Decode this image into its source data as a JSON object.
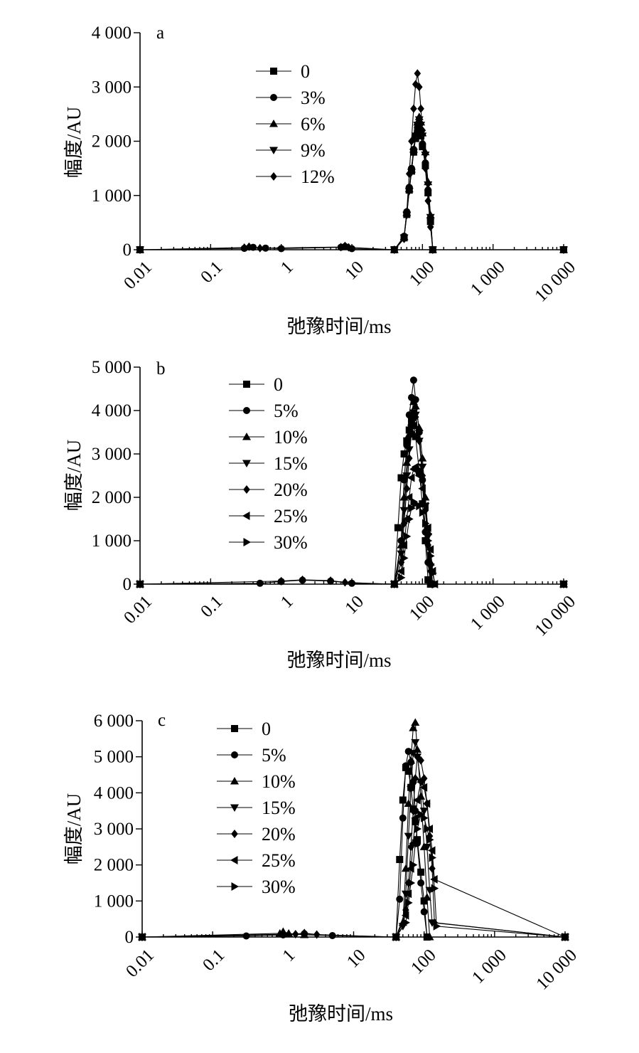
{
  "chart_data": [
    {
      "type": "line",
      "panel_label": "a",
      "xscale": "log",
      "xlim": [
        0.01,
        10000
      ],
      "ylim": [
        0,
        4000
      ],
      "xticks": [
        "0.01",
        "0.1",
        "1",
        "10",
        "100",
        "1 000",
        "10 000"
      ],
      "yticks": [
        "0",
        "1 000",
        "2 000",
        "3 000",
        "4 000"
      ],
      "xlabel": "弛豫时间/ms",
      "ylabel": "幅度/AU",
      "legend_position": "upper-left",
      "series": [
        {
          "name": "0",
          "marker": "square",
          "x": [
            0.01,
            40,
            55,
            60,
            65,
            70,
            75,
            80,
            85,
            90,
            95,
            100,
            110,
            120,
            130,
            140,
            10000
          ],
          "y": [
            0,
            0,
            220,
            650,
            1100,
            1450,
            1800,
            2050,
            2150,
            2200,
            2100,
            1900,
            1550,
            1050,
            520,
            0,
            0
          ]
        },
        {
          "name": "3%",
          "marker": "circle",
          "x": [
            0.01,
            0.3,
            0.4,
            0.6,
            1,
            7,
            8,
            10,
            40,
            55,
            60,
            65,
            70,
            75,
            80,
            85,
            90,
            95,
            100,
            110,
            120,
            130,
            140,
            10000
          ],
          "y": [
            0,
            25,
            45,
            30,
            20,
            45,
            60,
            20,
            0,
            250,
            700,
            1150,
            1500,
            1850,
            2100,
            2250,
            2300,
            2200,
            1950,
            1600,
            1100,
            560,
            0,
            0
          ]
        },
        {
          "name": "6%",
          "marker": "triangle-up",
          "x": [
            0.01,
            40,
            55,
            60,
            65,
            70,
            75,
            80,
            85,
            90,
            95,
            100,
            110,
            120,
            130,
            140,
            10000
          ],
          "y": [
            0,
            0,
            240,
            680,
            1120,
            1480,
            1850,
            2150,
            2350,
            2450,
            2350,
            2150,
            1800,
            1250,
            640,
            0,
            0
          ]
        },
        {
          "name": "9%",
          "marker": "triangle-down",
          "x": [
            0.01,
            40,
            55,
            60,
            65,
            70,
            75,
            80,
            85,
            90,
            95,
            100,
            110,
            120,
            130,
            140,
            10000
          ],
          "y": [
            0,
            0,
            220,
            640,
            1080,
            1430,
            1800,
            2100,
            2300,
            2400,
            2300,
            2100,
            1750,
            1200,
            600,
            0,
            0
          ]
        },
        {
          "name": "12%",
          "marker": "diamond",
          "x": [
            0.01,
            0.3,
            0.35,
            0.5,
            7,
            8,
            9,
            40,
            55,
            60,
            65,
            70,
            75,
            80,
            85,
            90,
            95,
            100,
            110,
            120,
            130,
            140,
            10000
          ],
          "y": [
            0,
            40,
            55,
            30,
            50,
            70,
            45,
            0,
            200,
            700,
            1400,
            2000,
            2600,
            3050,
            3250,
            3000,
            2600,
            2200,
            1500,
            900,
            420,
            0,
            0
          ]
        }
      ]
    },
    {
      "type": "line",
      "panel_label": "b",
      "xscale": "log",
      "xlim": [
        0.01,
        10000
      ],
      "ylim": [
        0,
        5000
      ],
      "xticks": [
        "0.01",
        "0.1",
        "1",
        "10",
        "100",
        "1 000",
        "10 000"
      ],
      "yticks": [
        "0",
        "1 000",
        "2 000",
        "3 000",
        "4 000",
        "5 000"
      ],
      "xlabel": "弛豫时间/ms",
      "ylabel": "幅度/AU",
      "legend_position": "upper-left",
      "series": [
        {
          "name": "0",
          "marker": "square",
          "x": [
            0.01,
            40,
            45,
            50,
            55,
            60,
            65,
            70,
            75,
            80,
            90,
            100,
            110,
            120,
            130,
            10000
          ],
          "y": [
            0,
            0,
            1300,
            2450,
            3000,
            3300,
            3550,
            3750,
            3650,
            3400,
            2600,
            1850,
            1000,
            100,
            0,
            0
          ]
        },
        {
          "name": "5%",
          "marker": "circle",
          "x": [
            0.01,
            0.5,
            1,
            2,
            5,
            10,
            40,
            50,
            55,
            60,
            65,
            70,
            75,
            80,
            90,
            100,
            110,
            120,
            130,
            10000
          ],
          "y": [
            0,
            20,
            60,
            90,
            70,
            20,
            0,
            1000,
            2400,
            3200,
            3900,
            4300,
            4700,
            4250,
            3500,
            2400,
            1200,
            500,
            0,
            0
          ]
        },
        {
          "name": "10%",
          "marker": "triangle-up",
          "x": [
            0.01,
            40,
            50,
            55,
            60,
            65,
            70,
            75,
            80,
            90,
            100,
            110,
            120,
            130,
            140,
            10000
          ],
          "y": [
            0,
            0,
            900,
            2000,
            2800,
            3450,
            3900,
            4200,
            4100,
            3600,
            2900,
            2000,
            1200,
            500,
            0,
            0
          ]
        },
        {
          "name": "15%",
          "marker": "triangle-down",
          "x": [
            0.01,
            40,
            50,
            55,
            60,
            65,
            70,
            75,
            80,
            90,
            100,
            110,
            120,
            130,
            140,
            10000
          ],
          "y": [
            0,
            0,
            700,
            1700,
            2500,
            3100,
            3600,
            3950,
            3900,
            3300,
            2700,
            1800,
            1100,
            400,
            0,
            0
          ]
        },
        {
          "name": "20%",
          "marker": "diamond",
          "x": [
            0.01,
            1,
            2,
            5,
            8,
            40,
            50,
            55,
            60,
            65,
            70,
            75,
            80,
            90,
            100,
            110,
            120,
            130,
            140,
            10000
          ],
          "y": [
            0,
            70,
            100,
            80,
            40,
            0,
            500,
            1400,
            2200,
            2900,
            3500,
            3900,
            3850,
            3300,
            2500,
            1700,
            900,
            300,
            0,
            0
          ]
        },
        {
          "name": "25%",
          "marker": "triangle-left",
          "x": [
            0.01,
            40,
            50,
            55,
            60,
            65,
            70,
            75,
            80,
            90,
            100,
            110,
            120,
            130,
            140,
            150,
            10000
          ],
          "y": [
            0,
            0,
            300,
            900,
            1500,
            2000,
            2450,
            2650,
            2700,
            2500,
            2200,
            1800,
            1300,
            800,
            300,
            0,
            0
          ]
        },
        {
          "name": "30%",
          "marker": "triangle-right",
          "x": [
            0.01,
            40,
            50,
            55,
            60,
            65,
            70,
            75,
            80,
            90,
            100,
            110,
            120,
            130,
            140,
            150,
            10000
          ],
          "y": [
            0,
            0,
            150,
            600,
            1100,
            1500,
            1750,
            1900,
            1850,
            1800,
            1650,
            1400,
            1000,
            650,
            250,
            0,
            0
          ]
        }
      ]
    },
    {
      "type": "line",
      "panel_label": "c",
      "xscale": "log",
      "xlim": [
        0.01,
        10000
      ],
      "ylim": [
        0,
        6000
      ],
      "xticks": [
        "0.01",
        "0.1",
        "1",
        "10",
        "100",
        "1 000",
        "10 000"
      ],
      "yticks": [
        "0",
        "1 000",
        "2 000",
        "3 000",
        "4 000",
        "5 000",
        "6 000"
      ],
      "xlabel": "弛豫时间/ms",
      "ylabel": "幅度/AU",
      "legend_position": "upper-left",
      "series": [
        {
          "name": "0",
          "marker": "square",
          "x": [
            0.01,
            40,
            45,
            50,
            55,
            60,
            65,
            70,
            75,
            80,
            90,
            100,
            110,
            10000
          ],
          "y": [
            0,
            0,
            2150,
            3800,
            4700,
            4600,
            4150,
            3550,
            3200,
            2700,
            1800,
            1000,
            0,
            0
          ]
        },
        {
          "name": "5%",
          "marker": "circle",
          "x": [
            0.01,
            0.3,
            1,
            2,
            5,
            40,
            45,
            50,
            55,
            60,
            65,
            70,
            75,
            80,
            90,
            100,
            110,
            10000
          ],
          "y": [
            0,
            30,
            60,
            90,
            40,
            0,
            1050,
            3300,
            4750,
            5150,
            4850,
            4300,
            3500,
            2600,
            1500,
            700,
            0,
            0
          ]
        },
        {
          "name": "10%",
          "marker": "triangle-up",
          "x": [
            0.01,
            0.9,
            1,
            1.2,
            2,
            40,
            50,
            55,
            60,
            65,
            70,
            75,
            80,
            90,
            100,
            110,
            120,
            10000
          ],
          "y": [
            0,
            100,
            150,
            100,
            60,
            0,
            400,
            1900,
            3700,
            4900,
            5800,
            5950,
            5200,
            3900,
            2500,
            1100,
            0,
            0
          ]
        },
        {
          "name": "15%",
          "marker": "triangle-down",
          "x": [
            0.01,
            40,
            50,
            55,
            60,
            65,
            70,
            75,
            80,
            90,
            100,
            110,
            120,
            130,
            10000
          ],
          "y": [
            0,
            0,
            300,
            1200,
            2800,
            4100,
            5100,
            5400,
            5000,
            4300,
            3500,
            2500,
            1300,
            400,
            0
          ]
        },
        {
          "name": "20%",
          "marker": "diamond",
          "x": [
            0.01,
            1.5,
            2,
            3,
            40,
            55,
            60,
            65,
            70,
            75,
            80,
            90,
            100,
            110,
            120,
            130,
            140,
            10000
          ],
          "y": [
            0,
            80,
            110,
            70,
            0,
            750,
            1500,
            2500,
            3500,
            4400,
            5000,
            4900,
            4400,
            3700,
            2800,
            1900,
            400,
            0
          ]
        },
        {
          "name": "25%",
          "marker": "triangle-left",
          "x": [
            0.01,
            40,
            55,
            60,
            65,
            70,
            75,
            80,
            90,
            100,
            110,
            120,
            130,
            140,
            10000
          ],
          "y": [
            0,
            0,
            600,
            1200,
            1900,
            2600,
            3300,
            3800,
            4300,
            4150,
            3700,
            3000,
            2400,
            1600,
            0
          ]
        },
        {
          "name": "30%",
          "marker": "triangle-right",
          "x": [
            0.01,
            40,
            55,
            60,
            65,
            70,
            75,
            80,
            90,
            100,
            110,
            120,
            130,
            140,
            150,
            10000
          ],
          "y": [
            0,
            0,
            400,
            950,
            1500,
            2000,
            2600,
            3000,
            3400,
            3300,
            3000,
            2700,
            2200,
            1350,
            300,
            0
          ]
        }
      ]
    }
  ]
}
